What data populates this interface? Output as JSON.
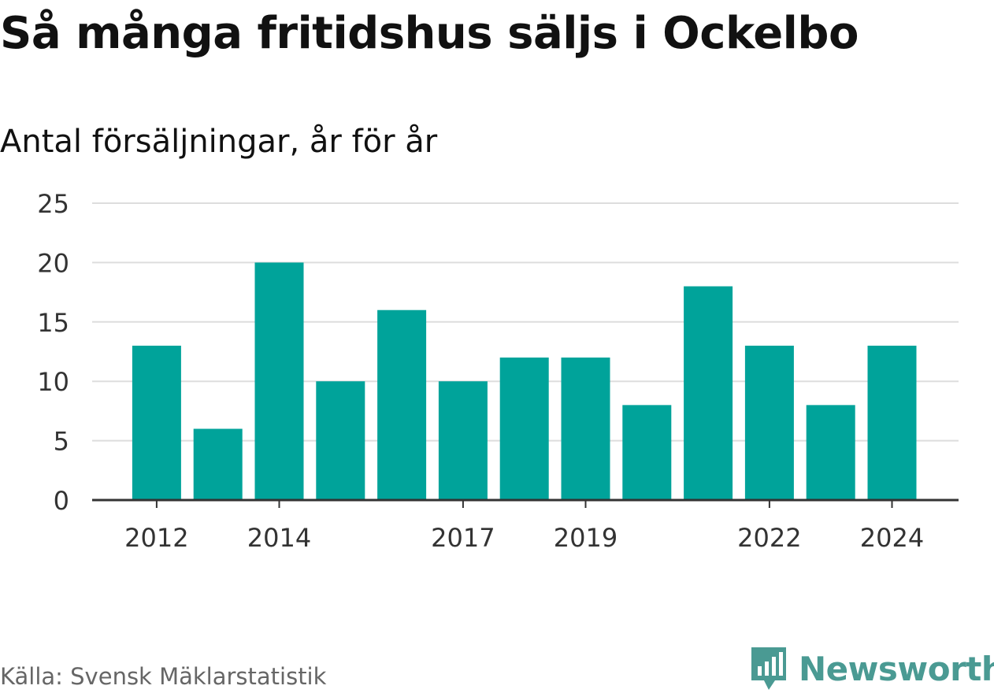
{
  "chart_data": {
    "type": "bar",
    "title": "Så många fritidshus säljs i Ockelbo",
    "subtitle": "Antal försäljningar, år för år",
    "categories": [
      "2012",
      "2013",
      "2014",
      "2015",
      "2016",
      "2017",
      "2018",
      "2019",
      "2020",
      "2021",
      "2022",
      "2023",
      "2024"
    ],
    "values": [
      13,
      6,
      20,
      10,
      16,
      10,
      12,
      12,
      8,
      18,
      13,
      8,
      13
    ],
    "x_tick_labels": [
      "2012",
      "2014",
      "2017",
      "2019",
      "2022",
      "2024"
    ],
    "y_ticks": [
      0,
      5,
      10,
      15,
      20,
      25
    ],
    "ylim": [
      0,
      25
    ],
    "xlabel": "",
    "ylabel": "",
    "grid": true,
    "bar_color": "#00a39a",
    "gridline_color": "#dddddd",
    "axis_color": "#333333"
  },
  "source": "Källa: Svensk Mäklarstatistik",
  "brand": {
    "name": "Newsworthy",
    "icon": "newsworthy-logo-icon",
    "color": "#4a9a93"
  }
}
